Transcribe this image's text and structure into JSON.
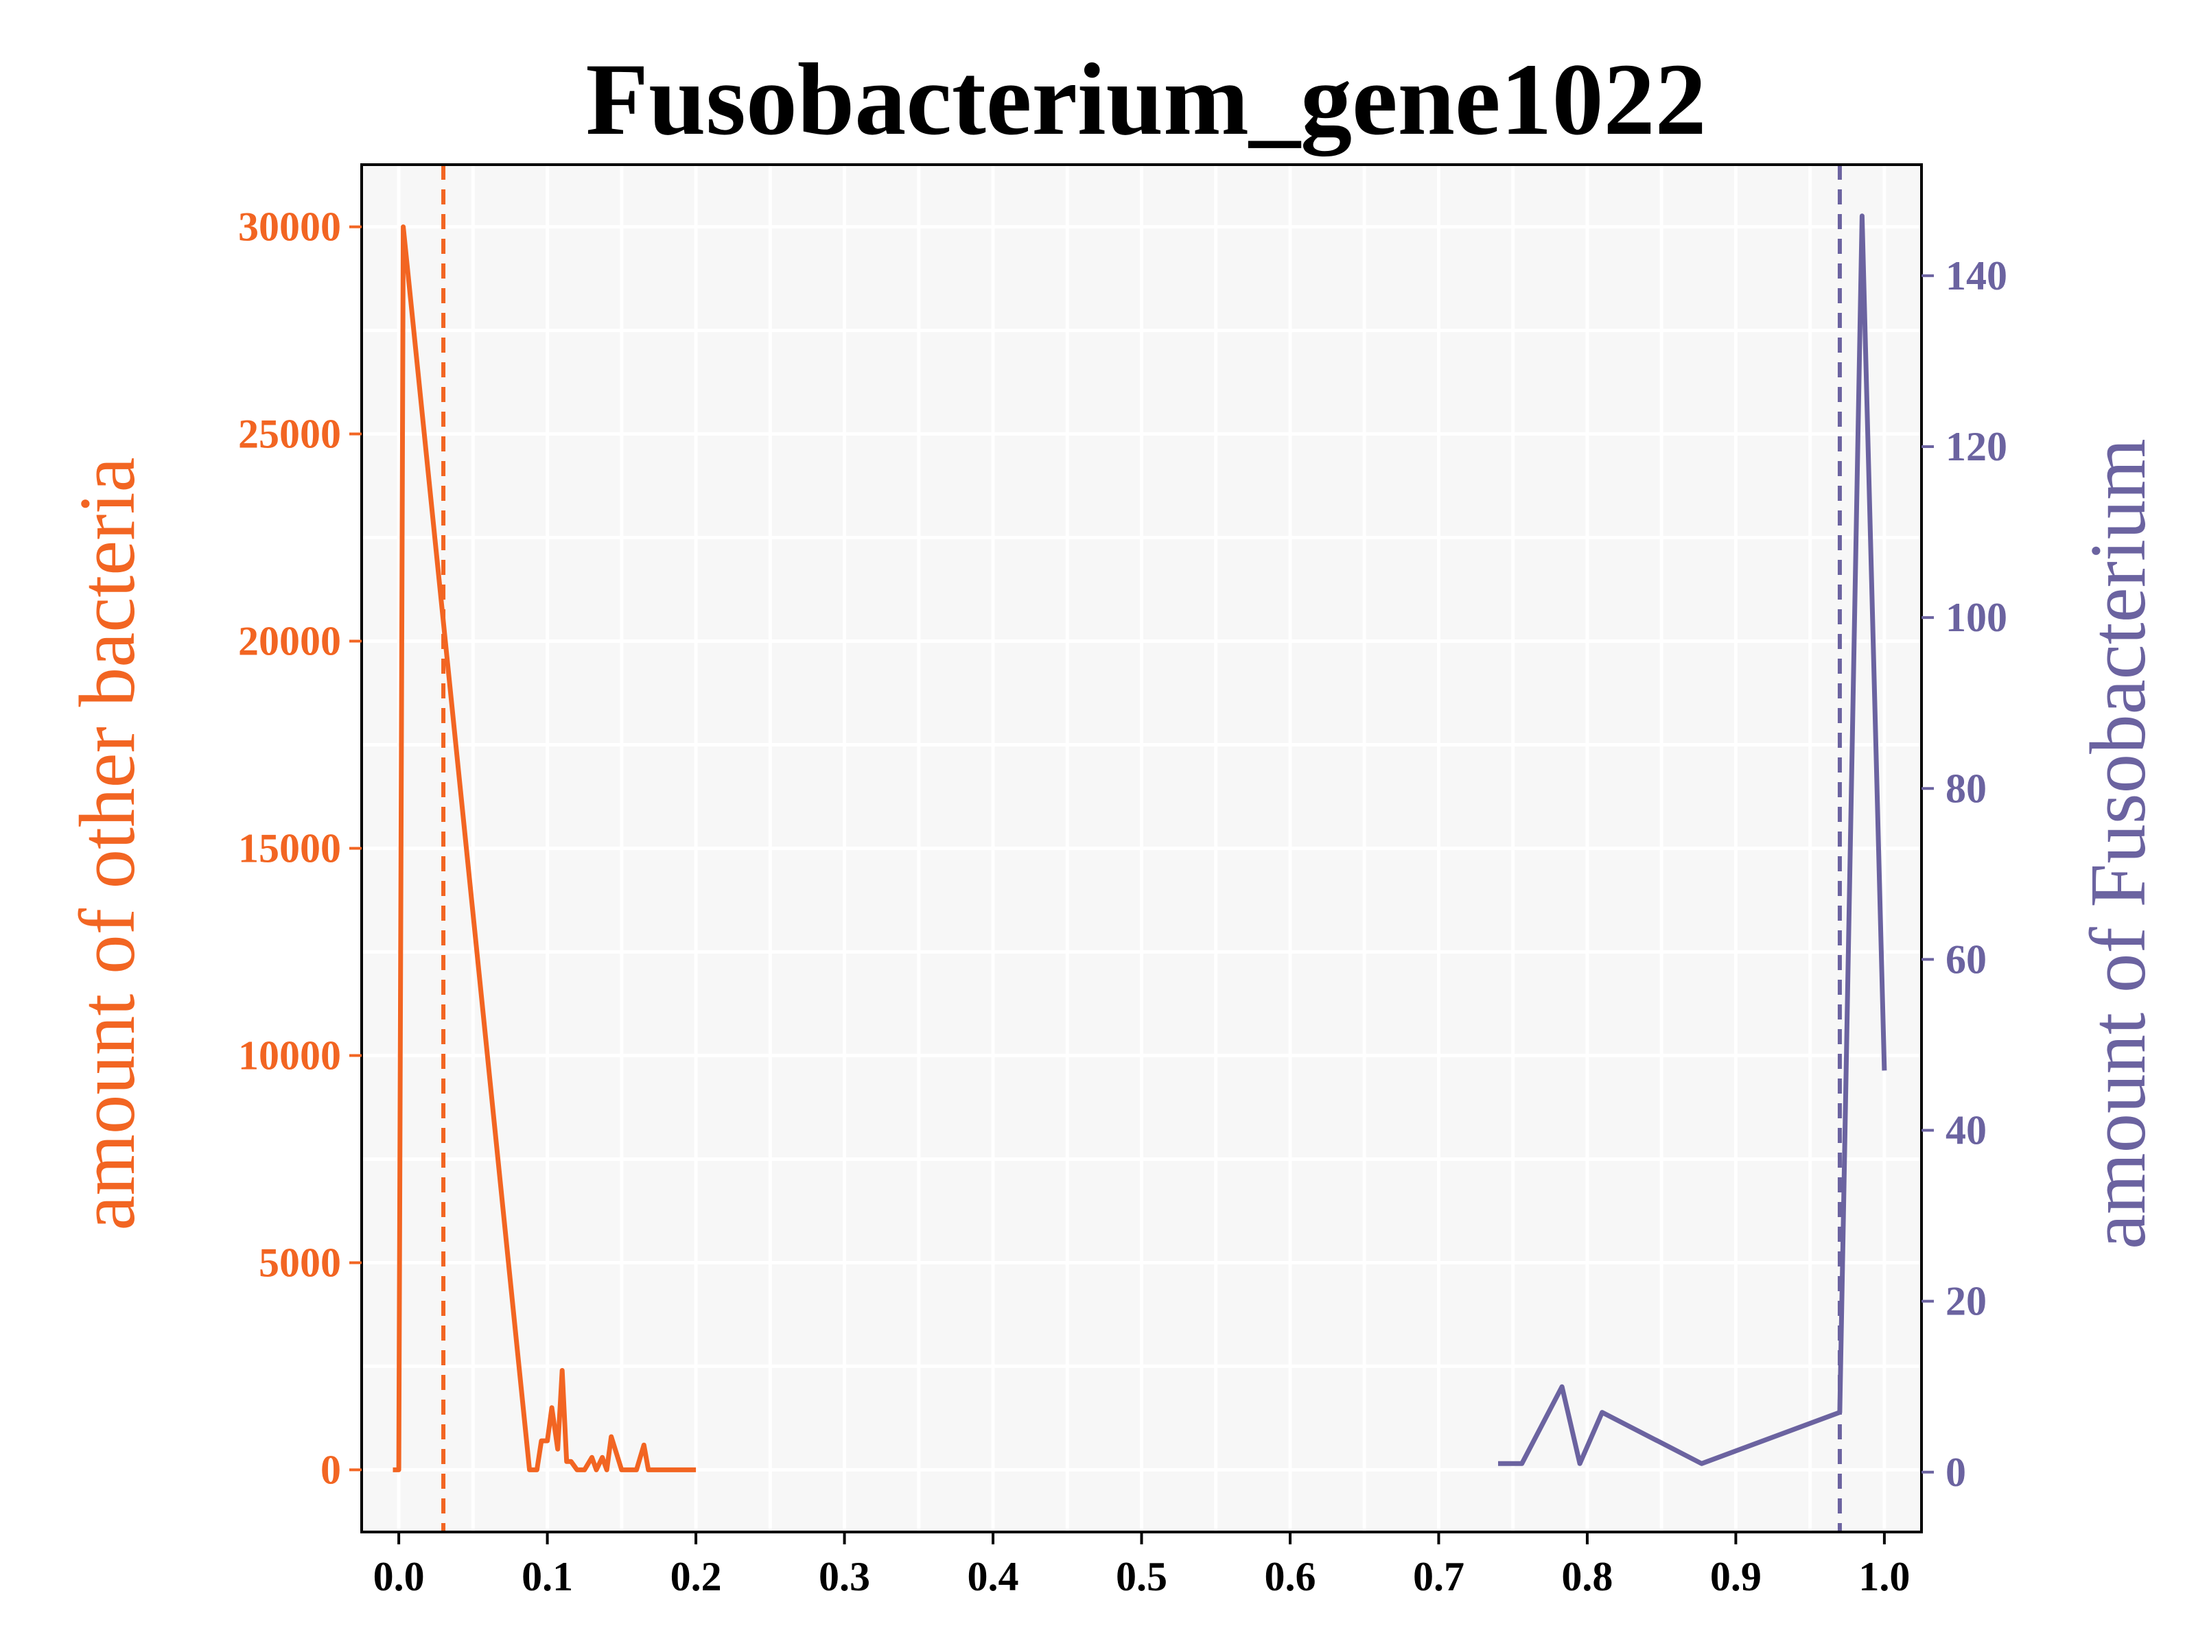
{
  "chart_data": {
    "type": "line",
    "title": "Fusobacterium_gene1022",
    "xlabel": "",
    "xlim": [
      -0.025,
      1.025
    ],
    "x_ticks": [
      "0.0",
      "0.1",
      "0.2",
      "0.3",
      "0.4",
      "0.5",
      "0.6",
      "0.7",
      "0.8",
      "0.9",
      "1.0"
    ],
    "grid": true,
    "background": "#f7f7f7",
    "left_axis": {
      "ylabel": "amount of other bacteria",
      "color": "#f26522",
      "ylim": [
        -1500,
        31500
      ],
      "ticks": [
        "0",
        "5000",
        "10000",
        "15000",
        "20000",
        "25000",
        "30000"
      ]
    },
    "right_axis": {
      "ylabel": "amount of Fusobacterium",
      "color": "#6b63a0",
      "ylim": [
        -7,
        153
      ],
      "ticks": [
        "0",
        "20",
        "40",
        "60",
        "80",
        "100",
        "120",
        "140"
      ]
    },
    "series": [
      {
        "axis": "left",
        "color": "#f26522",
        "x": [
          -0.004,
          0.0,
          0.003,
          0.088,
          0.093,
          0.096,
          0.1,
          0.103,
          0.107,
          0.11,
          0.113,
          0.116,
          0.12,
          0.125,
          0.13,
          0.133,
          0.137,
          0.14,
          0.143,
          0.15,
          0.155,
          0.16,
          0.165,
          0.168,
          0.18,
          0.2
        ],
        "y": [
          0,
          0,
          30000,
          0,
          0,
          700,
          700,
          1500,
          500,
          2400,
          200,
          200,
          0,
          0,
          300,
          0,
          300,
          0,
          800,
          0,
          0,
          0,
          600,
          0,
          0,
          0
        ]
      },
      {
        "axis": "right",
        "color": "#6b63a0",
        "x": [
          0.74,
          0.756,
          0.783,
          0.795,
          0.81,
          0.877,
          0.97,
          0.985,
          1.0
        ],
        "y": [
          1,
          1,
          10,
          1,
          7,
          1,
          7,
          147,
          47
        ]
      }
    ],
    "threshold_lines": [
      {
        "axis": "left",
        "x": 0.03,
        "color": "#f26522",
        "style": "dashed"
      },
      {
        "axis": "right",
        "x": 0.97,
        "color": "#6b63a0",
        "style": "dashed"
      }
    ]
  }
}
